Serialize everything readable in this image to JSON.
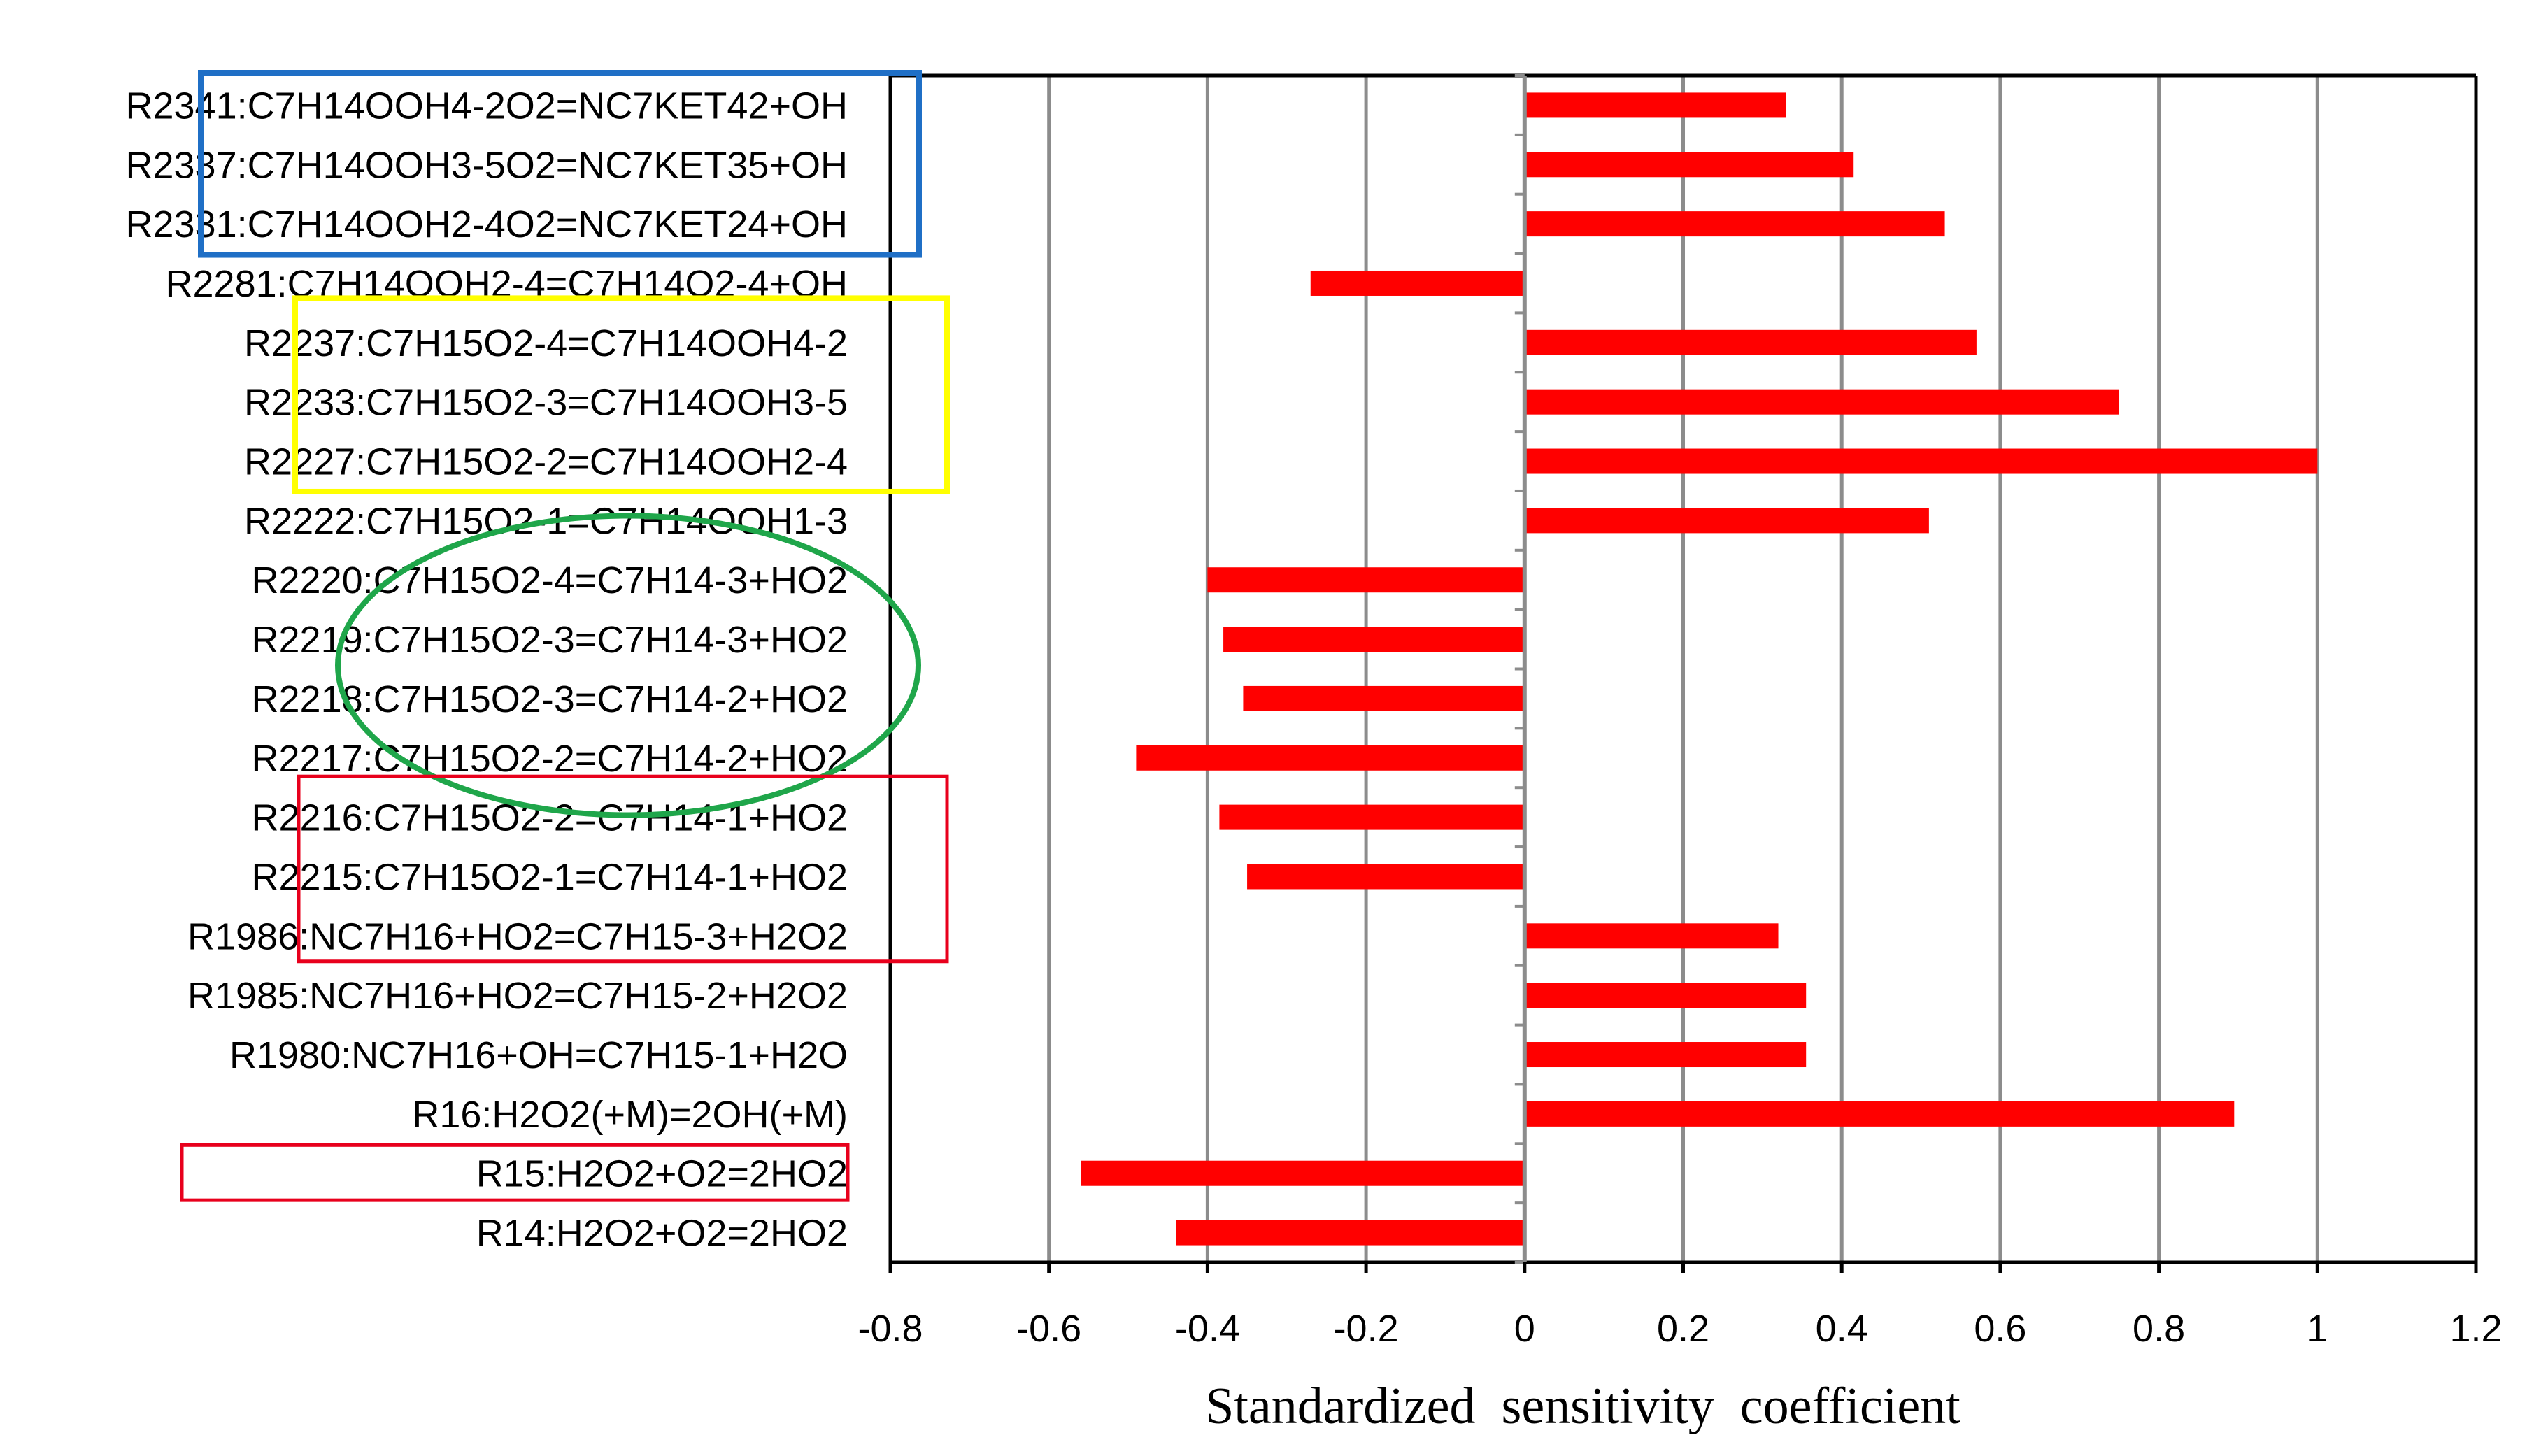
{
  "chart_data": {
    "type": "bar",
    "orientation": "horizontal",
    "title": "",
    "xlabel": "Standardized  sensitivity  coefficient",
    "ylabel": "",
    "xlim": [
      -0.8,
      1.2
    ],
    "xticks": [
      -0.8,
      -0.6,
      -0.4,
      -0.2,
      0,
      0.2,
      0.4,
      0.6,
      0.8,
      1,
      1.2
    ],
    "xtick_labels": [
      "-0.8",
      "-0.6",
      "-0.4",
      "-0.2",
      "0",
      "0.2",
      "0.4",
      "0.6",
      "0.8",
      "1",
      "1.2"
    ],
    "grid": true,
    "bar_color": "#ff0000",
    "categories": [
      "R2341:C7H14OOH4-2O2=NC7KET42+OH",
      "R2337:C7H14OOH3-5O2=NC7KET35+OH",
      "R2331:C7H14OOH2-4O2=NC7KET24+OH",
      "R2281:C7H14OOH2-4=C7H14O2-4+OH",
      "R2237:C7H15O2-4=C7H14OOH4-2",
      "R2233:C7H15O2-3=C7H14OOH3-5",
      "R2227:C7H15O2-2=C7H14OOH2-4",
      "R2222:C7H15O2-1=C7H14OOH1-3",
      "R2220:C7H15O2-4=C7H14-3+HO2",
      "R2219:C7H15O2-3=C7H14-3+HO2",
      "R2218:C7H15O2-3=C7H14-2+HO2",
      "R2217:C7H15O2-2=C7H14-2+HO2",
      "R2216:C7H15O2-2=C7H14-1+HO2",
      "R2215:C7H15O2-1=C7H14-1+HO2",
      "R1986:NC7H16+HO2=C7H15-3+H2O2",
      "R1985:NC7H16+HO2=C7H15-2+H2O2",
      "R1980:NC7H16+OH=C7H15-1+H2O",
      "R16:H2O2(+M)=2OH(+M)",
      "R15:H2O2+O2=2HO2",
      "R14:H2O2+O2=2HO2"
    ],
    "values": [
      0.33,
      0.415,
      0.53,
      -0.27,
      0.57,
      0.75,
      1.0,
      0.51,
      -0.4,
      -0.38,
      -0.355,
      -0.49,
      -0.385,
      -0.35,
      0.32,
      0.355,
      0.355,
      0.895,
      -0.56,
      -0.44
    ],
    "annotations": [
      {
        "shape": "rectangle",
        "color": "#1f6fc6",
        "encloses": "R2341, R2337, R2331 (labels)"
      },
      {
        "shape": "rectangle",
        "color": "#ffff00",
        "encloses": "R2237, R2233, R2227 (labels)"
      },
      {
        "shape": "ellipse",
        "color": "#1fa64a",
        "encloses": "R2220, R2219, R2218, R2217 (labels)"
      },
      {
        "shape": "rectangle",
        "color": "#e8001c",
        "encloses": "R2216, R2215, R1986 (labels)"
      },
      {
        "shape": "rectangle",
        "color": "#e8001c",
        "encloses": "R15 (label)"
      }
    ]
  }
}
